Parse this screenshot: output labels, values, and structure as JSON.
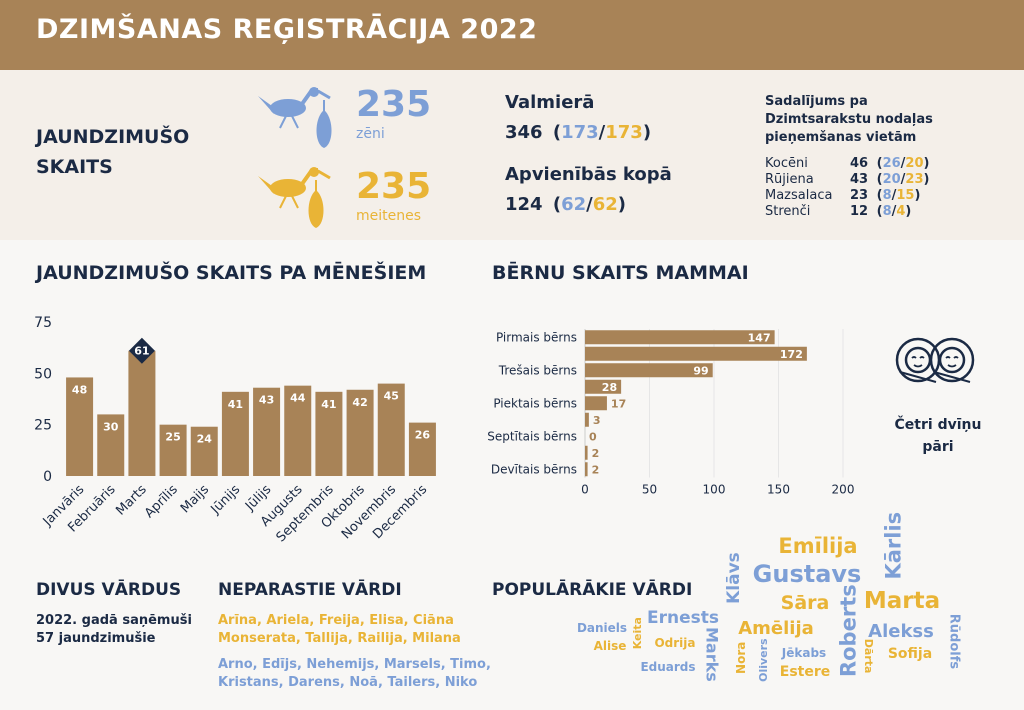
{
  "title": "DZIMŠANAS REĢISTRĀCIJA 2022",
  "summary": {
    "heading": "JAUNDZIMUŠO SKAITS",
    "boys": {
      "value": 235,
      "label": "zēni",
      "color": "#7d9fd6"
    },
    "girls": {
      "value": 235,
      "label": "meitenes",
      "color": "#e9b436"
    }
  },
  "locations": [
    {
      "label": "Valmierā",
      "total": 346,
      "boys": 173,
      "girls": 173
    },
    {
      "label": "Apvienībās kopā",
      "total": 124,
      "boys": 62,
      "girls": 62
    }
  ],
  "offices": {
    "title": "Sadalījums pa Dzimtsarakstu nodaļas pieņemšanas vietām",
    "rows": [
      {
        "name": "Kocēni",
        "total": 46,
        "boys": 26,
        "girls": 20
      },
      {
        "name": "Rūjiena",
        "total": 43,
        "boys": 20,
        "girls": 23
      },
      {
        "name": "Mazsalaca",
        "total": 23,
        "boys": 8,
        "girls": 15
      },
      {
        "name": "Strenči",
        "total": 12,
        "boys": 8,
        "girls": 4
      }
    ]
  },
  "chart_data": [
    {
      "type": "bar",
      "title": "JAUNDZIMUŠO SKAITS PA MĒNEŠIEM",
      "categories": [
        "Janvāris",
        "Februāris",
        "Marts",
        "Aprīlis",
        "Maijs",
        "Jūnijs",
        "Jūlijs",
        "Augusts",
        "Septembris",
        "Oktobris",
        "Novembris",
        "Decembris"
      ],
      "values": [
        48,
        30,
        61,
        25,
        24,
        41,
        43,
        44,
        41,
        42,
        45,
        26
      ],
      "color": "#a88357",
      "highlight_color": "#1b2a44",
      "ylim": [
        0,
        75
      ],
      "yticks": [
        0,
        25,
        50,
        75
      ],
      "grid": false
    },
    {
      "type": "hbar",
      "title": "BĒRNU SKAITS MAMMAI",
      "categories": [
        "Pirmais bērns",
        null,
        "Trešais bērns",
        null,
        "Piektais bērns",
        null,
        "Septītais bērns",
        null,
        "Devītais bērns"
      ],
      "values": [
        147,
        172,
        99,
        28,
        17,
        3,
        0,
        2,
        2
      ],
      "color": "#a88357",
      "xlim": [
        0,
        200
      ],
      "xticks": [
        0,
        50,
        100,
        150,
        200
      ],
      "grid": true
    }
  ],
  "twins": "Četri dvīņu pāri",
  "two_names": {
    "title": "DIVUS VĀRDUS",
    "text": "2022. gadā saņēmuši 57 jaundzimušie"
  },
  "unusual_names": {
    "title": "NEPARASTIE VĀRDI",
    "girls": "Arīna, Ariela, Freija, Elisa, Ciāna Monserata, Tallija, Railija, Milana",
    "boys": "Arno, Edījs, Nehemijs, Marsels, Timo, Kristans, Darens, Noā, Tailers, Niko"
  },
  "popular_names": {
    "title": "POPULĀRĀKIE VĀRDI",
    "words": [
      {
        "text": "Emīlija",
        "color": "#e9b436"
      },
      {
        "text": "Gustavs",
        "color": "#7d9fd6"
      },
      {
        "text": "Kārlis",
        "color": "#7d9fd6"
      },
      {
        "text": "Sāra",
        "color": "#e9b436"
      },
      {
        "text": "Marta",
        "color": "#e9b436"
      },
      {
        "text": "Klāvs",
        "color": "#7d9fd6"
      },
      {
        "text": "Ernests",
        "color": "#7d9fd6"
      },
      {
        "text": "Daniels",
        "color": "#7d9fd6"
      },
      {
        "text": "Alise",
        "color": "#e9b436"
      },
      {
        "text": "Keita",
        "color": "#e9b436"
      },
      {
        "text": "Odrija",
        "color": "#e9b436"
      },
      {
        "text": "Marks",
        "color": "#7d9fd6"
      },
      {
        "text": "Amēlija",
        "color": "#e9b436"
      },
      {
        "text": "Roberts",
        "color": "#7d9fd6"
      },
      {
        "text": "Alekss",
        "color": "#7d9fd6"
      },
      {
        "text": "Rūdolfs",
        "color": "#7d9fd6"
      },
      {
        "text": "Eduards",
        "color": "#7d9fd6"
      },
      {
        "text": "Nora",
        "color": "#e9b436"
      },
      {
        "text": "Olivers",
        "color": "#7d9fd6"
      },
      {
        "text": "Jēkabs",
        "color": "#7d9fd6"
      },
      {
        "text": "Estere",
        "color": "#e9b436"
      },
      {
        "text": "Dārta",
        "color": "#e9b436"
      },
      {
        "text": "Sofija",
        "color": "#e9b436"
      }
    ]
  }
}
